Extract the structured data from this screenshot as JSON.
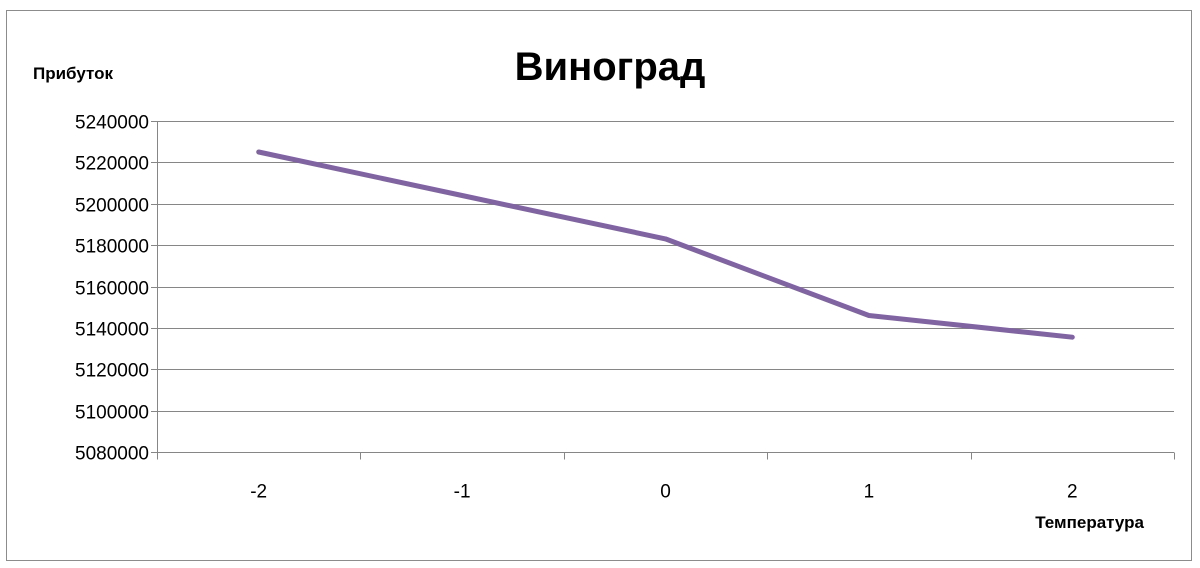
{
  "chart_data": {
    "type": "line",
    "title": "Виноград",
    "xlabel": "Температура",
    "ylabel": "Прибуток",
    "categories": [
      "-2",
      "-1",
      "0",
      "1",
      "2"
    ],
    "series": [
      {
        "values": [
          5225000,
          5204000,
          5183000,
          5146000,
          5135500
        ]
      }
    ],
    "ylim": [
      5080000,
      5240000
    ],
    "yticks": [
      "5080000",
      "5100000",
      "5120000",
      "5140000",
      "5160000",
      "5180000",
      "5200000",
      "5220000",
      "5240000"
    ],
    "grid": true,
    "legend": "none",
    "colors": {
      "series": "#8064a2",
      "grid": "#868686",
      "axis": "#868686"
    }
  }
}
